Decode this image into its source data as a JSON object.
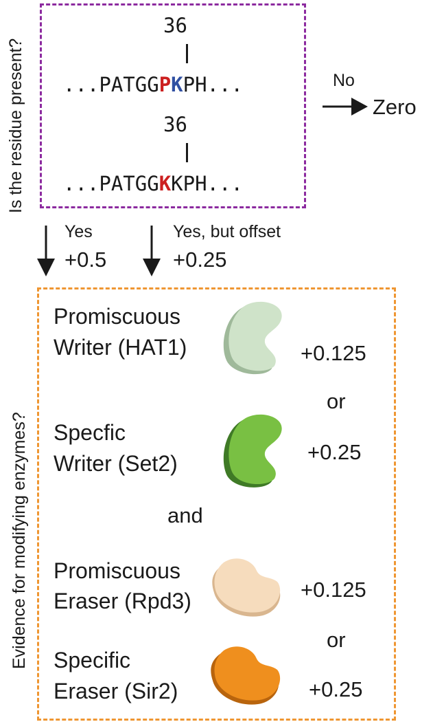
{
  "labels": {
    "residue_question": "Is the residue present?",
    "enzyme_question": "Evidence for modifying enzymes?"
  },
  "sequence": {
    "position": "36",
    "top": {
      "prefix": "...PATGG",
      "mark1": "P",
      "mark2": "K",
      "suffix": "PH..."
    },
    "bottom": {
      "prefix": "...PATGG",
      "mark": "K",
      "suffix": "KPH..."
    }
  },
  "outcomes": {
    "no_label": "No",
    "no_result": "Zero",
    "yes_label": "Yes",
    "yes_score": "+0.5",
    "offset_label": "Yes, but offset",
    "offset_score": "+0.25"
  },
  "enzymes": {
    "promiscuous_writer": {
      "line1": "Promiscuous",
      "line2": "Writer (HAT1)",
      "score": "+0.125",
      "color": "#cfe3c9"
    },
    "or1": "or",
    "specific_writer": {
      "line1": "Specfic",
      "line2": "Writer (Set2)",
      "score": "+0.25",
      "color": "#79c043"
    },
    "and": "and",
    "promiscuous_eraser": {
      "line1": "Promiscuous",
      "line2": "Eraser (Rpd3)",
      "score": "+0.125",
      "color": "#f6dcbd"
    },
    "or2": "or",
    "specific_eraser": {
      "line1": "Specific",
      "line2": "Eraser (Sir2)",
      "score": "+0.25",
      "color": "#ef8f1e"
    }
  },
  "colors": {
    "purple_border": "#8c2a9f",
    "orange_border": "#ef9632",
    "highlight_red": "#cc1f1f",
    "highlight_blue": "#2f4fa2"
  }
}
